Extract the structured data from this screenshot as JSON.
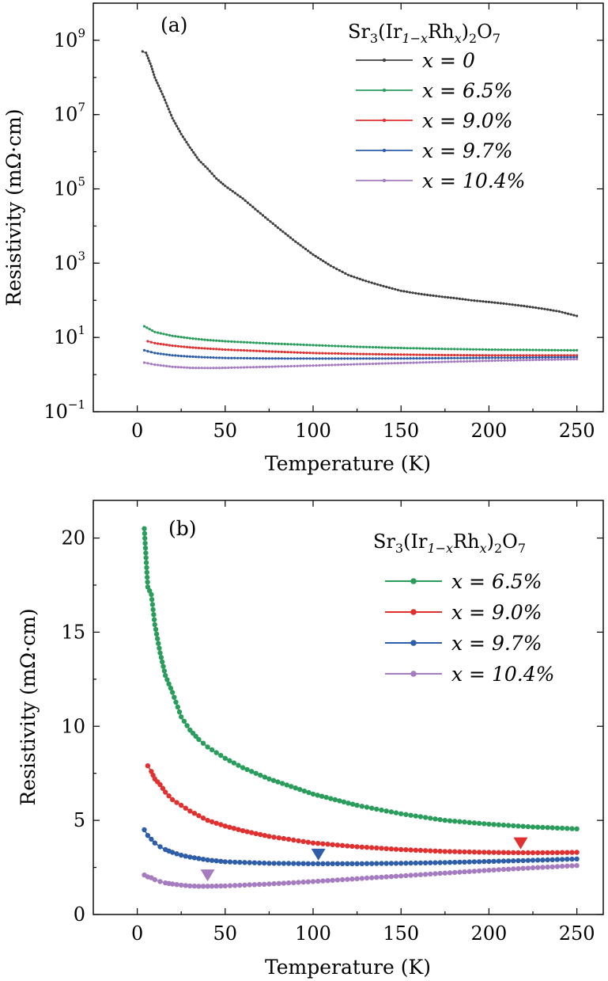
{
  "chart_data": [
    {
      "type": "line",
      "panel_label": "(a)",
      "xlabel": "Temperature (K)",
      "ylabel": "Resistivity (mΩ·cm)",
      "xlim": [
        -25,
        265
      ],
      "xticks": [
        0,
        50,
        100,
        150,
        200,
        250
      ],
      "xtick_labels": [
        "0",
        "50",
        "100",
        "150",
        "200",
        "250"
      ],
      "yscale": "log",
      "ylim": [
        0.1,
        10000000000
      ],
      "yticks": [
        0.1,
        10,
        1000,
        100000,
        10000000,
        1000000000
      ],
      "ytick_labels": [
        {
          "base": "10",
          "exp": "−1"
        },
        {
          "base": "10",
          "exp": "1"
        },
        {
          "base": "10",
          "exp": "3"
        },
        {
          "base": "10",
          "exp": "5"
        },
        {
          "base": "10",
          "exp": "7"
        },
        {
          "base": "10",
          "exp": "9"
        }
      ],
      "grid": false,
      "legend_position": "top-right",
      "legend_title": {
        "main": "Sr",
        "s1": "3",
        "mid": "(Ir",
        "s2": "1−x",
        "mid2": "Rh",
        "s3": "x",
        "end": ")",
        "s4": "2",
        "end2": "O",
        "s5": "7"
      },
      "series": [
        {
          "name": "x = 0",
          "color": "#404040",
          "x": [
            3,
            5,
            8,
            10,
            15,
            20,
            25,
            30,
            35,
            40,
            45,
            50,
            60,
            70,
            80,
            90,
            100,
            110,
            120,
            130,
            140,
            150,
            160,
            170,
            180,
            190,
            200,
            210,
            220,
            230,
            240,
            250
          ],
          "y": [
            500000000,
            460000000,
            200000000,
            100000000,
            30000000,
            8000000,
            3000000,
            1300000,
            600000,
            350000,
            190000,
            120000,
            55000,
            22000,
            9000,
            3800,
            1700,
            850,
            480,
            330,
            240,
            180,
            150,
            130,
            115,
            100,
            90,
            80,
            70,
            60,
            50,
            38
          ]
        },
        {
          "name": "x = 6.5%",
          "color": "#2a9d5c",
          "x": [
            4,
            10,
            20,
            30,
            40,
            50,
            75,
            100,
            125,
            150,
            175,
            200,
            225,
            250
          ],
          "y": [
            20,
            14,
            11,
            9.5,
            8.5,
            7.9,
            6.9,
            6.2,
            5.6,
            5.2,
            4.9,
            4.7,
            4.6,
            4.5
          ]
        },
        {
          "name": "x = 9.0%",
          "color": "#e03030",
          "x": [
            6,
            10,
            20,
            30,
            40,
            50,
            75,
            100,
            125,
            150,
            175,
            200,
            225,
            250
          ],
          "y": [
            7.9,
            7.0,
            6.0,
            5.4,
            5.0,
            4.7,
            4.2,
            3.8,
            3.6,
            3.45,
            3.35,
            3.3,
            3.28,
            3.3
          ]
        },
        {
          "name": "x = 9.7%",
          "color": "#2e5ea8",
          "x": [
            4,
            10,
            20,
            30,
            40,
            50,
            75,
            100,
            125,
            150,
            175,
            200,
            225,
            250
          ],
          "y": [
            4.5,
            3.8,
            3.3,
            3.05,
            2.9,
            2.8,
            2.72,
            2.7,
            2.7,
            2.72,
            2.76,
            2.82,
            2.88,
            2.95
          ]
        },
        {
          "name": "x = 10.4%",
          "color": "#a57cc0",
          "x": [
            4,
            10,
            20,
            30,
            40,
            50,
            75,
            100,
            125,
            150,
            175,
            200,
            225,
            250
          ],
          "y": [
            2.1,
            1.85,
            1.62,
            1.52,
            1.5,
            1.52,
            1.62,
            1.75,
            1.9,
            2.05,
            2.2,
            2.35,
            2.48,
            2.6
          ]
        }
      ]
    },
    {
      "type": "line",
      "panel_label": "(b)",
      "xlabel": "Temperature (K)",
      "ylabel": "Resistivity (mΩ·cm)",
      "xlim": [
        -25,
        265
      ],
      "xticks": [
        0,
        50,
        100,
        150,
        200,
        250
      ],
      "xtick_labels": [
        "0",
        "50",
        "100",
        "150",
        "200",
        "250"
      ],
      "yscale": "linear",
      "ylim": [
        0,
        22
      ],
      "yticks": [
        0,
        5,
        10,
        15,
        20
      ],
      "ytick_labels": [
        "0",
        "5",
        "10",
        "15",
        "20"
      ],
      "grid": false,
      "legend_position": "top-right",
      "legend_title": {
        "main": "Sr",
        "s1": "3",
        "mid": "(Ir",
        "s2": "1−x",
        "mid2": "Rh",
        "s3": "x",
        "end": ")",
        "s4": "2",
        "end2": "O",
        "s5": "7"
      },
      "series": [
        {
          "name": "x = 6.5%",
          "color": "#2a9d5c",
          "x": [
            4,
            6,
            8,
            10,
            13,
            16,
            20,
            25,
            30,
            35,
            40,
            50,
            60,
            75,
            100,
            125,
            150,
            175,
            200,
            225,
            250
          ],
          "y": [
            20.5,
            17.4,
            17.0,
            15.4,
            13.9,
            12.7,
            11.8,
            10.5,
            9.8,
            9.3,
            8.9,
            8.3,
            7.8,
            7.2,
            6.4,
            5.8,
            5.35,
            5.0,
            4.8,
            4.65,
            4.55
          ]
        },
        {
          "name": "x = 9.0%",
          "color": "#e03030",
          "x": [
            6,
            8,
            10,
            13,
            16,
            20,
            25,
            30,
            40,
            50,
            60,
            75,
            100,
            125,
            150,
            175,
            200,
            225,
            250
          ],
          "y": [
            7.9,
            7.6,
            7.2,
            6.9,
            6.5,
            6.1,
            5.8,
            5.5,
            5.0,
            4.7,
            4.45,
            4.15,
            3.8,
            3.6,
            3.45,
            3.35,
            3.3,
            3.28,
            3.3
          ]
        },
        {
          "name": "x = 9.7%",
          "color": "#2e5ea8",
          "x": [
            4,
            6,
            8,
            10,
            13,
            16,
            20,
            25,
            30,
            40,
            50,
            75,
            100,
            125,
            150,
            175,
            200,
            225,
            250
          ],
          "y": [
            4.5,
            4.2,
            4.0,
            3.8,
            3.6,
            3.45,
            3.3,
            3.15,
            3.05,
            2.9,
            2.8,
            2.72,
            2.7,
            2.7,
            2.72,
            2.76,
            2.82,
            2.88,
            2.95
          ]
        },
        {
          "name": "x = 10.4%",
          "color": "#a57cc0",
          "x": [
            4,
            6,
            8,
            10,
            13,
            16,
            20,
            25,
            30,
            35,
            40,
            50,
            75,
            100,
            125,
            150,
            175,
            200,
            225,
            250
          ],
          "y": [
            2.1,
            2.0,
            1.95,
            1.85,
            1.75,
            1.68,
            1.62,
            1.56,
            1.52,
            1.5,
            1.5,
            1.52,
            1.62,
            1.75,
            1.9,
            2.05,
            2.2,
            2.35,
            2.48,
            2.6
          ]
        }
      ],
      "annotations": [
        {
          "type": "triangle-down",
          "series": "x = 6.5%",
          "color": "#e03030",
          "x": 218,
          "y": 3.8
        },
        {
          "type": "triangle-down",
          "series": "x = 9.7%",
          "color": "#2e5ea8",
          "x": 103,
          "y": 3.2
        },
        {
          "type": "triangle-down",
          "series": "x = 10.4%",
          "color": "#a57cc0",
          "x": 40,
          "y": 2.1
        }
      ]
    }
  ]
}
